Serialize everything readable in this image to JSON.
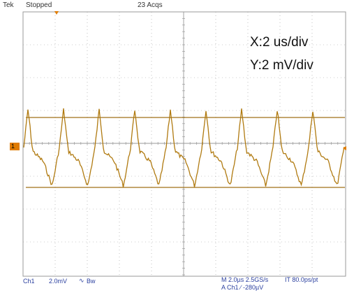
{
  "topbar": {
    "brand": "Tek",
    "state": "Stopped",
    "acqs": "23 Acqs"
  },
  "annotation": {
    "x_scale": "X:2 us/div",
    "y_scale": "Y:2 mV/div"
  },
  "channel_marker": "1",
  "bottombar": {
    "channel": "Ch1",
    "volts_div": "2.0mV",
    "bw_flag": "Bw",
    "bw_symbol": "∿",
    "timebase": "M 2.0µs 2.5GS/s",
    "record": "IT 80.0ps/pt",
    "trigger": "A  Ch1  ∕  -280µV"
  },
  "colors": {
    "trace": "#b07a10",
    "cursor": "#a07018",
    "grid": "#9a9a9a",
    "text_blue": "#2a3f9f",
    "marker": "#e07b00"
  }
}
